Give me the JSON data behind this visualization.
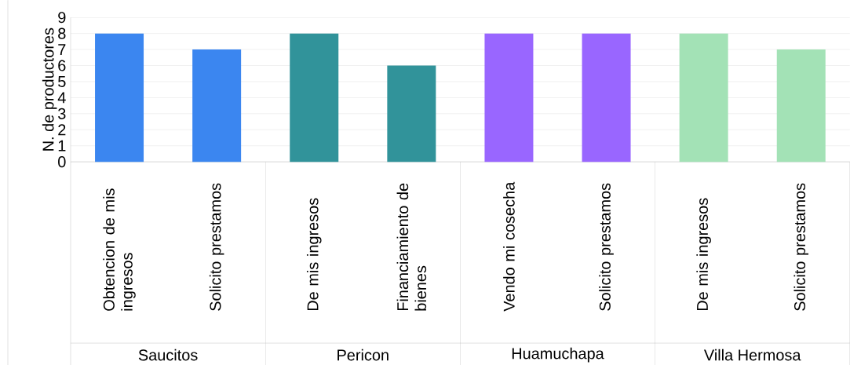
{
  "chart_data": {
    "type": "bar",
    "ylabel": "N. de productores",
    "categories": [
      "Obtencion de mis ingresos",
      "Solicito prestamos",
      "De mis ingresos",
      "Financiamiento de bienes",
      "Vendo mi cosecha",
      "Solicito prestamos",
      "De mis ingresos",
      "Solicito prestamos"
    ],
    "series": [
      {
        "color": "#3b86f0",
        "values": [
          8,
          7,
          null,
          null,
          null,
          null,
          null,
          null
        ]
      },
      {
        "color": "#31939a",
        "values": [
          null,
          null,
          8,
          6,
          null,
          null,
          null,
          null
        ]
      },
      {
        "color": "#9966ff",
        "values": [
          null,
          null,
          null,
          null,
          8,
          8,
          null,
          null
        ]
      },
      {
        "color": "#a3e2b6",
        "values": [
          null,
          null,
          null,
          null,
          null,
          null,
          8,
          7
        ]
      }
    ],
    "annotations": [
      "Saucitos",
      "Pericon",
      "Huamuchapa",
      "Villa Hermosa"
    ],
    "ylim": [
      0,
      9
    ],
    "yticks": [
      0,
      1,
      2,
      3,
      4,
      5,
      6,
      7,
      8,
      9
    ],
    "grid": "y"
  }
}
